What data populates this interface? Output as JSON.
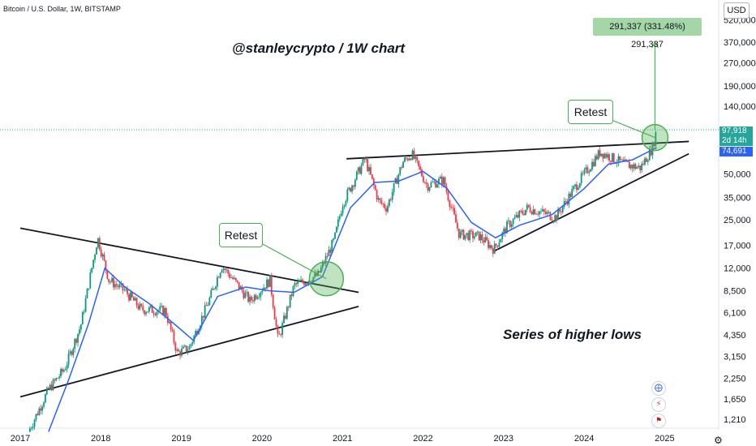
{
  "symbol": "Bitcoin / U.S. Dollar, 1W, BITSTAMP",
  "currency": "USD",
  "annotations": {
    "title": "@stanleycrypto / 1W chart",
    "caption": "Series of higher lows",
    "retest_label_1": "Retest",
    "retest_label_2": "Retest",
    "measure_label": "291,337 (331.48%) 291,337"
  },
  "price_tags": {
    "last_price": "97,918",
    "countdown": "2d 14h",
    "ma_value": "74,691",
    "last_color": "#26a69a",
    "ma_color": "#2962ff"
  },
  "toolbar_icons": [
    "compass-icon",
    "lightning-icon",
    "us-flag-icon"
  ],
  "chart_data": {
    "type": "candlestick",
    "title": "@stanleycrypto / 1W chart",
    "x_ticks": [
      "2017",
      "2018",
      "2019",
      "2020",
      "2021",
      "2022",
      "2023",
      "2024",
      "2025"
    ],
    "y_scale": "log",
    "y_ticks": [
      "1,210",
      "1,650",
      "2,250",
      "3,150",
      "4,350",
      "6,100",
      "8,500",
      "12,000",
      "17,000",
      "25,000",
      "35,000",
      "50,000",
      "140,000",
      "190,000",
      "270,000",
      "370,000",
      "520,000"
    ],
    "y_tick_values": [
      1210,
      1650,
      2250,
      3150,
      4350,
      6100,
      8500,
      12000,
      17000,
      25000,
      35000,
      50000,
      140000,
      190000,
      270000,
      370000,
      520000
    ],
    "price_path": [
      {
        "x": 2017.1,
        "y": 1000
      },
      {
        "x": 2017.35,
        "y": 1900
      },
      {
        "x": 2017.55,
        "y": 2600
      },
      {
        "x": 2017.75,
        "y": 5000
      },
      {
        "x": 2017.96,
        "y": 19000
      },
      {
        "x": 2018.1,
        "y": 10000
      },
      {
        "x": 2018.3,
        "y": 8500
      },
      {
        "x": 2018.5,
        "y": 6400
      },
      {
        "x": 2018.8,
        "y": 6300
      },
      {
        "x": 2018.95,
        "y": 3300
      },
      {
        "x": 2019.1,
        "y": 3600
      },
      {
        "x": 2019.35,
        "y": 7500
      },
      {
        "x": 2019.5,
        "y": 12500
      },
      {
        "x": 2019.65,
        "y": 10000
      },
      {
        "x": 2019.85,
        "y": 7300
      },
      {
        "x": 2020.1,
        "y": 10000
      },
      {
        "x": 2020.2,
        "y": 4000
      },
      {
        "x": 2020.4,
        "y": 9200
      },
      {
        "x": 2020.7,
        "y": 10800
      },
      {
        "x": 2020.9,
        "y": 18500
      },
      {
        "x": 2021.0,
        "y": 32000
      },
      {
        "x": 2021.28,
        "y": 63000
      },
      {
        "x": 2021.45,
        "y": 33000
      },
      {
        "x": 2021.55,
        "y": 30000
      },
      {
        "x": 2021.75,
        "y": 60000
      },
      {
        "x": 2021.86,
        "y": 68000
      },
      {
        "x": 2022.05,
        "y": 42000
      },
      {
        "x": 2022.25,
        "y": 46000
      },
      {
        "x": 2022.45,
        "y": 20000
      },
      {
        "x": 2022.7,
        "y": 19500
      },
      {
        "x": 2022.88,
        "y": 16000
      },
      {
        "x": 2023.05,
        "y": 23000
      },
      {
        "x": 2023.3,
        "y": 30000
      },
      {
        "x": 2023.65,
        "y": 26000
      },
      {
        "x": 2023.9,
        "y": 42000
      },
      {
        "x": 2024.2,
        "y": 70000
      },
      {
        "x": 2024.5,
        "y": 58000
      },
      {
        "x": 2024.7,
        "y": 55000
      },
      {
        "x": 2024.85,
        "y": 75000
      },
      {
        "x": 2024.9,
        "y": 97918
      }
    ],
    "moving_average": {
      "value": 74691,
      "color": "#2962ff",
      "points": [
        {
          "x": 2017.35,
          "y": 1000
        },
        {
          "x": 2017.6,
          "y": 2200
        },
        {
          "x": 2017.85,
          "y": 5200
        },
        {
          "x": 2018.05,
          "y": 12000
        },
        {
          "x": 2018.3,
          "y": 9000
        },
        {
          "x": 2018.6,
          "y": 7000
        },
        {
          "x": 2018.9,
          "y": 5200
        },
        {
          "x": 2019.15,
          "y": 4000
        },
        {
          "x": 2019.45,
          "y": 7800
        },
        {
          "x": 2019.8,
          "y": 9000
        },
        {
          "x": 2020.1,
          "y": 8500
        },
        {
          "x": 2020.4,
          "y": 8300
        },
        {
          "x": 2020.75,
          "y": 10500
        },
        {
          "x": 2021.1,
          "y": 30000
        },
        {
          "x": 2021.4,
          "y": 44000
        },
        {
          "x": 2021.7,
          "y": 45000
        },
        {
          "x": 2022.0,
          "y": 52000
        },
        {
          "x": 2022.3,
          "y": 40000
        },
        {
          "x": 2022.6,
          "y": 24000
        },
        {
          "x": 2022.9,
          "y": 19000
        },
        {
          "x": 2023.2,
          "y": 23000
        },
        {
          "x": 2023.6,
          "y": 27000
        },
        {
          "x": 2024.0,
          "y": 40000
        },
        {
          "x": 2024.3,
          "y": 58000
        },
        {
          "x": 2024.6,
          "y": 62000
        },
        {
          "x": 2024.9,
          "y": 74691
        }
      ]
    },
    "trendlines": [
      {
        "name": "descending-resistance-2017-2020",
        "from": {
          "x": 2017.0,
          "y": 22000
        },
        "to": {
          "x": 2021.2,
          "y": 8300
        }
      },
      {
        "name": "ascending-support-2017-2020",
        "from": {
          "x": 2017.0,
          "y": 1700
        },
        "to": {
          "x": 2021.2,
          "y": 6700
        }
      },
      {
        "name": "flat-resistance-2021-2024",
        "from": {
          "x": 2021.05,
          "y": 63000
        },
        "to": {
          "x": 2025.3,
          "y": 82000
        }
      },
      {
        "name": "ascending-support-2022-2024",
        "from": {
          "x": 2022.88,
          "y": 15500
        },
        "to": {
          "x": 2025.3,
          "y": 68000
        }
      }
    ],
    "retest_markers": [
      {
        "x": 2020.8,
        "y": 10200
      },
      {
        "x": 2024.88,
        "y": 87000
      }
    ],
    "measure_target": 291337,
    "measure_change_pct": 331.48,
    "grid": false,
    "legend": "none"
  }
}
